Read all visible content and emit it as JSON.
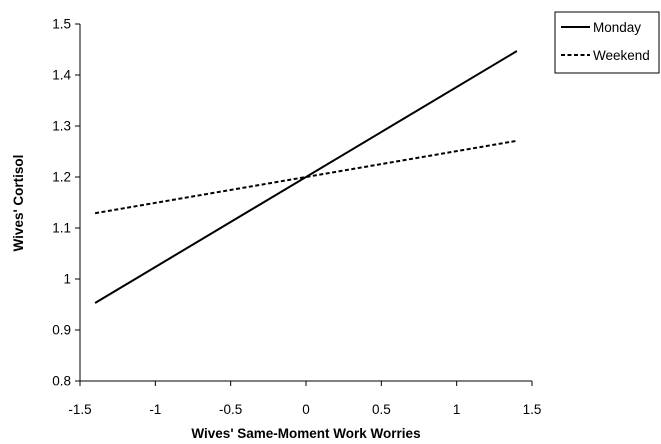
{
  "chart_data": {
    "type": "line",
    "xlabel": "Wives' Same-Moment Work Worries",
    "ylabel": "Wives' Cortisol",
    "xlim": [
      -1.5,
      1.5
    ],
    "ylim": [
      0.8,
      1.5
    ],
    "xticks": [
      -1.5,
      -1,
      -0.5,
      0,
      0.5,
      1,
      1.5
    ],
    "yticks": [
      0.8,
      0.9,
      1,
      1.1,
      1.2,
      1.3,
      1.4,
      1.5
    ],
    "xtick_labels": [
      "-1.5",
      "-1",
      "-0.5",
      "0",
      "0.5",
      "1",
      "1.5"
    ],
    "ytick_labels": [
      "0.8",
      "0.9",
      "1",
      "1.1",
      "1.2",
      "1.3",
      "1.4",
      "1.5"
    ],
    "grid": false,
    "legend_position": "top-right",
    "series": [
      {
        "name": "Monday",
        "dash": "solid",
        "color": "#000000",
        "x": [
          -1.4,
          1.4
        ],
        "y": [
          0.953,
          1.447
        ]
      },
      {
        "name": "Weekend",
        "dash": "dashed",
        "color": "#000000",
        "x": [
          -1.4,
          1.4
        ],
        "y": [
          1.129,
          1.271
        ]
      }
    ]
  }
}
